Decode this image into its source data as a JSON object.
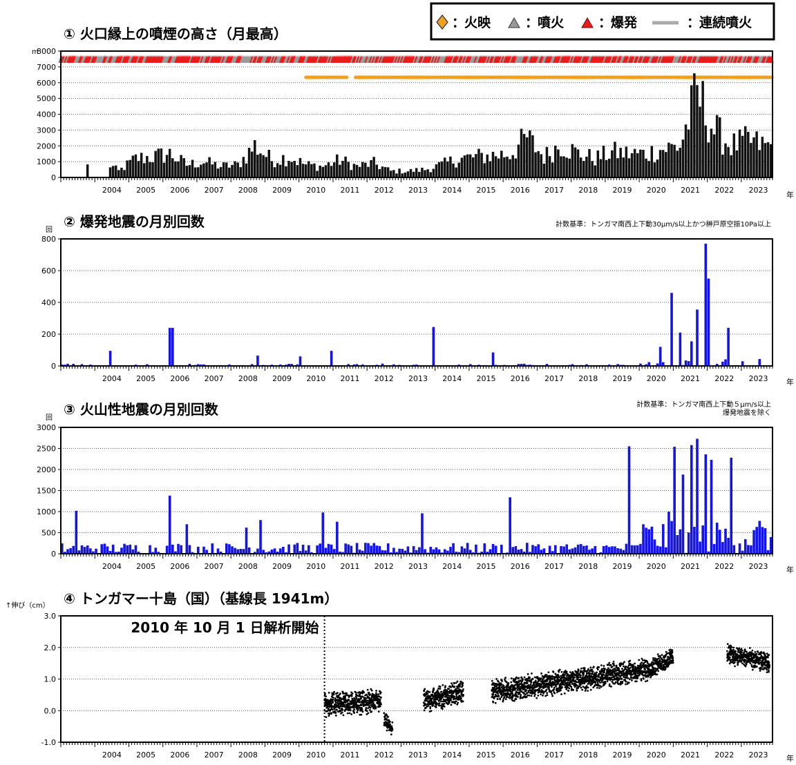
{
  "legend": {
    "glow": "火映",
    "eruption": "噴火",
    "explosion": "爆発",
    "continuous": "連続噴火",
    "sep1": "：",
    "sep2": "：",
    "sep3": "：",
    "sep4": "：",
    "glow_color": "#f0a020",
    "explosion_color": "#e81c1c",
    "continuous_color": "#aaaaaa"
  },
  "year_unit": "年",
  "years": [
    "2004",
    "2005",
    "2006",
    "2007",
    "2008",
    "2009",
    "2010",
    "2011",
    "2012",
    "2013",
    "2014",
    "2015",
    "2016",
    "2017",
    "2018",
    "2019",
    "2020",
    "2021",
    "2022",
    "2023"
  ],
  "panels": [
    {
      "id": "p1",
      "title": "① 火口縁上の噴煙の高さ（月最高）",
      "unit": "m",
      "note": "",
      "yticks": [
        "0",
        "1000",
        "2000",
        "3000",
        "4000",
        "5000",
        "6000",
        "7000",
        "8000"
      ],
      "color": "#000000"
    },
    {
      "id": "p2",
      "title": "② 爆発地震の月別回数",
      "unit": "回",
      "note": "計数基準：トンガマ南西上下動30μm/s以上かつ榊戸原空振10Pa以上",
      "yticks": [
        "0",
        "200",
        "400",
        "600",
        "800"
      ],
      "color": "#1414e6"
    },
    {
      "id": "p3",
      "title": "③ 火山性地震の月別回数",
      "unit": "回",
      "note": "計数基準：トンガマ南西上下動５μm/s以上",
      "note2": "爆発地震を除く",
      "yticks": [
        "0",
        "500",
        "1000",
        "1500",
        "2000",
        "2500",
        "3000"
      ],
      "color": "#1414e6"
    },
    {
      "id": "p4",
      "title": "④ トンガマー十島（国）（基線長 1941m）",
      "unit": "↑伸び（cm）",
      "note": "",
      "annotation": "2010 年 10 月 1 日解析開始",
      "yticks": [
        "-1.0",
        "0.0",
        "1.0",
        "2.0",
        "3.0"
      ],
      "color": "#000000"
    }
  ],
  "chart_data": [
    {
      "type": "bar",
      "title": "① 火口縁上の噴煙の高さ（月最高）",
      "ylabel": "m",
      "xlabel": "年",
      "xlim": [
        "2003-01",
        "2023-11"
      ],
      "ylim": [
        0,
        8000
      ],
      "grid": true,
      "x_key_dates": [
        "2003-09",
        "2004-05",
        "2004-09",
        "2005-03",
        "2005-09",
        "2006-03",
        "2006-09",
        "2007-03",
        "2007-09",
        "2008-03",
        "2008-09",
        "2009-03",
        "2009-09",
        "2010-03",
        "2010-09",
        "2011-03",
        "2011-09",
        "2012-03",
        "2012-09",
        "2013-03",
        "2013-09",
        "2014-03",
        "2014-09",
        "2015-03",
        "2015-09",
        "2016-03",
        "2016-09",
        "2017-03",
        "2017-09",
        "2018-03",
        "2018-09",
        "2019-03",
        "2019-09",
        "2020-03",
        "2020-09",
        "2021-03",
        "2021-09",
        "2022-03",
        "2022-09",
        "2023-03",
        "2023-09"
      ],
      "values": [
        700,
        900,
        400,
        1200,
        1300,
        1500,
        800,
        1000,
        700,
        800,
        2000,
        1100,
        1300,
        800,
        700,
        1100,
        700,
        900,
        400,
        400,
        500,
        800,
        1200,
        1300,
        1400,
        1500,
        2500,
        1300,
        2100,
        1500,
        1200,
        1600,
        1500,
        1500,
        1800,
        2000,
        5300,
        3000,
        2000,
        2300,
        2000
      ],
      "sampling": "monthly; key months listed, intervening months filled smoothly"
    },
    {
      "type": "bar",
      "title": "② 爆発地震の月別回数",
      "ylabel": "回",
      "xlabel": "年",
      "ylim": [
        0,
        800
      ],
      "grid": true,
      "spikes": [
        {
          "date": "2004-06",
          "value": 95
        },
        {
          "date": "2006-03",
          "value": 240
        },
        {
          "date": "2006-04",
          "value": 240
        },
        {
          "date": "2008-10",
          "value": 65
        },
        {
          "date": "2010-01",
          "value": 60
        },
        {
          "date": "2010-12",
          "value": 95
        },
        {
          "date": "2013-12",
          "value": 245
        },
        {
          "date": "2015-09",
          "value": 85
        },
        {
          "date": "2020-08",
          "value": 120
        },
        {
          "date": "2020-12",
          "value": 460
        },
        {
          "date": "2021-03",
          "value": 210
        },
        {
          "date": "2021-07",
          "value": 155
        },
        {
          "date": "2021-09",
          "value": 355
        },
        {
          "date": "2021-12",
          "value": 770
        },
        {
          "date": "2022-01",
          "value": 550
        },
        {
          "date": "2022-08",
          "value": 240
        }
      ],
      "baseline": "most other months 0–30"
    },
    {
      "type": "bar",
      "title": "③ 火山性地震の月別回数",
      "ylabel": "回",
      "xlabel": "年",
      "ylim": [
        0,
        3000
      ],
      "grid": true,
      "spikes": [
        {
          "date": "2003-06",
          "value": 1020
        },
        {
          "date": "2006-03",
          "value": 1380
        },
        {
          "date": "2006-09",
          "value": 700
        },
        {
          "date": "2008-06",
          "value": 620
        },
        {
          "date": "2008-11",
          "value": 800
        },
        {
          "date": "2010-09",
          "value": 980
        },
        {
          "date": "2011-02",
          "value": 760
        },
        {
          "date": "2013-08",
          "value": 960
        },
        {
          "date": "2016-03",
          "value": 1340
        },
        {
          "date": "2019-09",
          "value": 2550
        },
        {
          "date": "2020-02",
          "value": 700
        },
        {
          "date": "2020-11",
          "value": 1000
        },
        {
          "date": "2021-01",
          "value": 2540
        },
        {
          "date": "2021-04",
          "value": 1880
        },
        {
          "date": "2021-07",
          "value": 2580
        },
        {
          "date": "2021-09",
          "value": 2730
        },
        {
          "date": "2021-12",
          "value": 2360
        },
        {
          "date": "2022-02",
          "value": 2230
        },
        {
          "date": "2022-09",
          "value": 2280
        },
        {
          "date": "2023-07",
          "value": 780
        }
      ],
      "baseline": "most other months 50–350"
    },
    {
      "type": "scatter",
      "title": "④ トンガマー十島（国）（基線長 1941m）",
      "ylabel": "伸び（cm）",
      "xlabel": "年",
      "ylim": [
        -1.0,
        3.0
      ],
      "grid": true,
      "annotation": "2010 年 10 月 1 日解析開始",
      "segments": [
        {
          "start": "2010-10",
          "end": "2012-06",
          "level_start": 0.2,
          "level_end": 0.3,
          "scatter": 0.3
        },
        {
          "start": "2012-07",
          "end": "2012-10",
          "level_start": -0.3,
          "level_end": -0.6,
          "scatter": 0.2
        },
        {
          "start": "2013-09",
          "end": "2014-11",
          "level_start": 0.3,
          "level_end": 0.6,
          "scatter": 0.3
        },
        {
          "start": "2015-09",
          "end": "2020-04",
          "level_start": 0.6,
          "level_end": 1.3,
          "scatter": 0.3
        },
        {
          "start": "2020-04",
          "end": "2021-01",
          "level_start": 1.3,
          "level_end": 1.7,
          "scatter": 0.25
        },
        {
          "start": "2022-08",
          "end": "2023-11",
          "level_start": 1.8,
          "level_end": 1.5,
          "scatter": 0.25
        }
      ]
    }
  ]
}
